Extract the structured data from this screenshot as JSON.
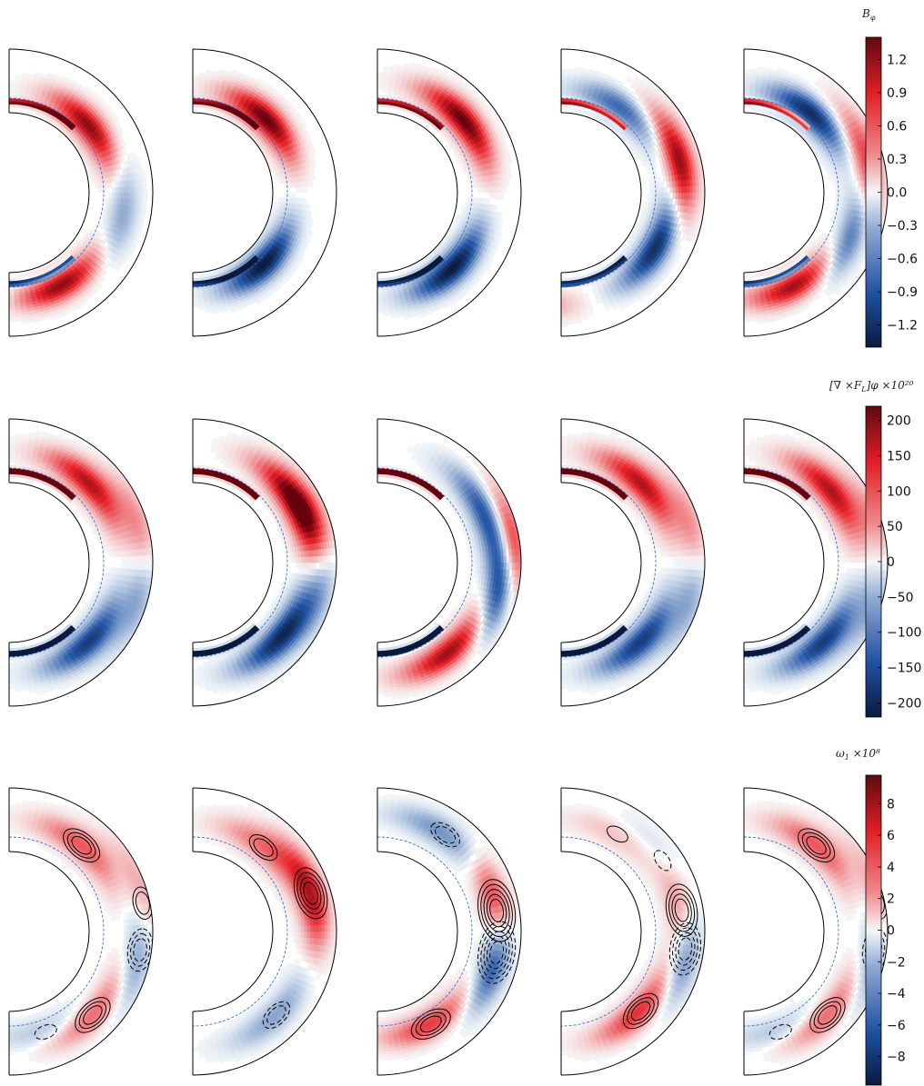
{
  "chart_data": [
    {
      "type": "heatmap",
      "title": "",
      "colorbar_label_main": "B",
      "colorbar_label_sub": "φ",
      "colorbar_label_suffix": "",
      "colorbar_ticks": [
        "1.2",
        "0.9",
        "0.6",
        "0.3",
        "0.0",
        "−0.3",
        "−0.6",
        "−0.9",
        "−1.2"
      ],
      "colorbar_tick_values": [
        1.2,
        0.9,
        0.6,
        0.3,
        0.0,
        -0.3,
        -0.6,
        -0.9,
        -1.2
      ],
      "clim": [
        -1.4,
        1.4
      ],
      "colormap": "seismic-like (blue-white-red)",
      "panels": 5,
      "contours": false
    },
    {
      "type": "heatmap",
      "title": "",
      "colorbar_label_main": "[∇ ×F",
      "colorbar_label_sub": "L",
      "colorbar_label_suffix": "]φ ×10²⁰",
      "colorbar_ticks": [
        "200",
        "150",
        "100",
        "50",
        "0",
        "−50",
        "−100",
        "−150",
        "−200"
      ],
      "colorbar_tick_values": [
        200,
        150,
        100,
        50,
        0,
        -50,
        -100,
        -150,
        -200
      ],
      "clim": [
        -220,
        220
      ],
      "colormap": "seismic-like (blue-white-red)",
      "panels": 5,
      "contours": false
    },
    {
      "type": "heatmap",
      "title": "",
      "colorbar_label_main": "ω",
      "colorbar_label_sub": "1",
      "colorbar_label_suffix": " ×10⁸",
      "colorbar_ticks": [
        "8",
        "6",
        "4",
        "2",
        "0",
        "−2",
        "−4",
        "−6",
        "−8"
      ],
      "colorbar_tick_values": [
        8,
        6,
        4,
        2,
        0,
        -2,
        -4,
        -6,
        -8
      ],
      "clim": [
        -9.8,
        9.8
      ],
      "colormap": "seismic-like (blue-white-red)",
      "panels": 5,
      "contours": true
    }
  ],
  "colors": {
    "deep_red": "#67000d",
    "red": "#e8252b",
    "white": "#f8fbfb",
    "blue": "#2859a8",
    "deep_blue": "#0a1a3d",
    "outline": "#000000",
    "tachocline": "#3a6fd0"
  },
  "panel_patterns": [
    [
      [
        {
          "th": 40,
          "r": 0.72,
          "s": 0.9
        },
        {
          "th": -12,
          "r": 0.8,
          "s": -0.35
        },
        {
          "th": -60,
          "r": 0.74,
          "s": 0.9
        },
        {
          "th": -120,
          "r": 0.72,
          "s": -0.5
        },
        {
          "th": -170,
          "r": 0.63,
          "s": 1.3
        }
      ],
      [
        {
          "th": 45,
          "r": 0.72,
          "s": 1.0
        },
        {
          "th": -45,
          "r": 0.7,
          "s": -1.0
        },
        {
          "th": -170,
          "r": 0.63,
          "s": 1.3
        }
      ],
      [
        {
          "th": 40,
          "r": 0.78,
          "s": 1.0
        },
        {
          "th": -45,
          "r": 0.74,
          "s": -1.0
        },
        {
          "th": -170,
          "r": 0.63,
          "s": 1.3
        }
      ],
      [
        {
          "th": 55,
          "r": 0.72,
          "s": -0.6
        },
        {
          "th": 15,
          "r": 0.85,
          "s": 0.9
        },
        {
          "th": -30,
          "r": 0.76,
          "s": -0.9
        },
        {
          "th": -110,
          "r": 0.78,
          "s": 0.4
        },
        {
          "th": -170,
          "r": 0.63,
          "s": 1.3
        }
      ],
      [
        {
          "th": 50,
          "r": 0.72,
          "s": -0.9
        },
        {
          "th": 15,
          "r": 0.88,
          "s": 0.6
        },
        {
          "th": -25,
          "r": 0.8,
          "s": -0.6
        },
        {
          "th": -60,
          "r": 0.74,
          "s": 0.9
        },
        {
          "th": -170,
          "r": 0.63,
          "s": 1.3
        }
      ]
    ],
    [
      [
        {
          "th": 45,
          "r": 0.78,
          "s": 0.8
        },
        {
          "th": 5,
          "r": 0.93,
          "s": 1.0
        },
        {
          "th": -5,
          "r": 0.93,
          "s": -1.0
        },
        {
          "th": -45,
          "r": 0.78,
          "s": -0.8
        },
        {
          "th": -170,
          "r": 0.63,
          "s": 2.0
        }
      ],
      [
        {
          "th": 30,
          "r": 0.82,
          "s": 1.0
        },
        {
          "th": 10,
          "r": 0.9,
          "s": 0.8
        },
        {
          "th": -5,
          "r": 0.9,
          "s": -0.8
        },
        {
          "th": -40,
          "r": 0.8,
          "s": -0.9
        },
        {
          "th": -170,
          "r": 0.63,
          "s": 2.0
        }
      ],
      [
        {
          "th": 25,
          "r": 0.82,
          "s": -0.7
        },
        {
          "th": 5,
          "r": 0.93,
          "s": 1.0
        },
        {
          "th": -10,
          "r": 0.88,
          "s": -1.1
        },
        {
          "th": -50,
          "r": 0.8,
          "s": 0.9
        },
        {
          "th": -170,
          "r": 0.63,
          "s": 2.0
        }
      ],
      [
        {
          "th": 45,
          "r": 0.78,
          "s": 0.8
        },
        {
          "th": 5,
          "r": 0.93,
          "s": 1.0
        },
        {
          "th": -5,
          "r": 0.93,
          "s": -1.0
        },
        {
          "th": -45,
          "r": 0.78,
          "s": -0.8
        },
        {
          "th": -170,
          "r": 0.63,
          "s": 2.0
        }
      ],
      [
        {
          "th": 40,
          "r": 0.78,
          "s": 0.8
        },
        {
          "th": 5,
          "r": 0.93,
          "s": 1.0
        },
        {
          "th": -5,
          "r": 0.93,
          "s": -1.0
        },
        {
          "th": -45,
          "r": 0.78,
          "s": -0.8
        },
        {
          "th": -170,
          "r": 0.63,
          "s": 2.0
        }
      ]
    ],
    [
      [
        {
          "th": 50,
          "r": 0.78,
          "s": 0.5
        },
        {
          "th": 12,
          "r": 0.95,
          "s": 0.4
        },
        {
          "th": -8,
          "r": 0.92,
          "s": -0.5
        },
        {
          "th": -45,
          "r": 0.82,
          "s": 0.5
        },
        {
          "th": -70,
          "r": 0.74,
          "s": -0.25
        }
      ],
      [
        {
          "th": 50,
          "r": 0.76,
          "s": 0.4
        },
        {
          "th": 18,
          "r": 0.86,
          "s": 0.8
        },
        {
          "th": -45,
          "r": 0.82,
          "s": -0.35
        }
      ],
      [
        {
          "th": 55,
          "r": 0.82,
          "s": -0.45
        },
        {
          "th": 10,
          "r": 0.84,
          "s": 0.95
        },
        {
          "th": -10,
          "r": 0.84,
          "s": -1.0
        },
        {
          "th": -60,
          "r": 0.74,
          "s": 0.6
        }
      ],
      [
        {
          "th": 60,
          "r": 0.78,
          "s": 0.2
        },
        {
          "th": 35,
          "r": 0.86,
          "s": -0.25
        },
        {
          "th": 10,
          "r": 0.85,
          "s": 0.7
        },
        {
          "th": -8,
          "r": 0.87,
          "s": -0.7
        },
        {
          "th": -45,
          "r": 0.78,
          "s": 0.65
        }
      ],
      [
        {
          "th": 50,
          "r": 0.78,
          "s": 0.5
        },
        {
          "th": 12,
          "r": 0.95,
          "s": 0.4
        },
        {
          "th": -8,
          "r": 0.92,
          "s": -0.5
        },
        {
          "th": -45,
          "r": 0.82,
          "s": 0.5
        },
        {
          "th": -70,
          "r": 0.74,
          "s": -0.25
        }
      ]
    ]
  ]
}
